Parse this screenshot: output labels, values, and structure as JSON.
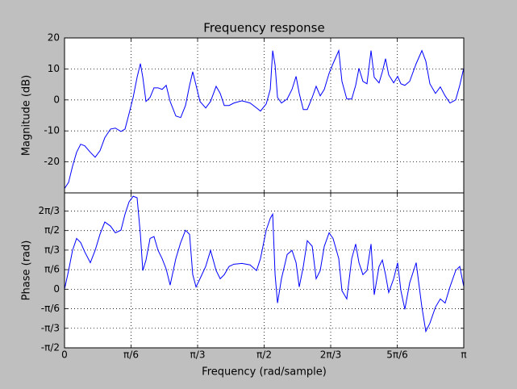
{
  "chart_data": [
    {
      "type": "line",
      "title": "Frequency response",
      "y_label": "Magnitude (dB)",
      "color": "#0000ff",
      "grid": true,
      "x": [
        0,
        0.032,
        0.063,
        0.095,
        0.127,
        0.159,
        0.203,
        0.241,
        0.279,
        0.317,
        0.362,
        0.4,
        0.444,
        0.476,
        0.508,
        0.54,
        0.571,
        0.597,
        0.616,
        0.641,
        0.673,
        0.704,
        0.736,
        0.768,
        0.8,
        0.831,
        0.876,
        0.914,
        0.952,
        0.984,
        1.009,
        1.035,
        1.066,
        1.111,
        1.149,
        1.193,
        1.225,
        1.257,
        1.295,
        1.333,
        1.396,
        1.46,
        1.511,
        1.542,
        1.587,
        1.619,
        1.638,
        1.657,
        1.676,
        1.707,
        1.752,
        1.79,
        1.822,
        1.847,
        1.879,
        1.91,
        1.949,
        1.98,
        2.012,
        2.044,
        2.082,
        2.113,
        2.158,
        2.183,
        2.221,
        2.26,
        2.291,
        2.317,
        2.348,
        2.38,
        2.412,
        2.437,
        2.475,
        2.501,
        2.526,
        2.551,
        2.59,
        2.621,
        2.647,
        2.678,
        2.716,
        2.767,
        2.812,
        2.843,
        2.875,
        2.919,
        2.957,
        2.995,
        3.033,
        3.078,
        3.11,
        3.142
      ],
      "values": [
        -28.6,
        -26.6,
        -21.4,
        -16.9,
        -14.3,
        -14.8,
        -16.9,
        -18.5,
        -16.4,
        -12.2,
        -9.4,
        -9.1,
        -10.2,
        -9.4,
        -4.4,
        0.8,
        7.3,
        11.7,
        7.3,
        -0.5,
        0.8,
        3.9,
        3.9,
        3.4,
        4.7,
        -0.5,
        -5.2,
        -5.7,
        -1.8,
        4.7,
        9.1,
        4.7,
        -0.5,
        -2.6,
        -0.5,
        4.4,
        2.1,
        -1.8,
        -1.8,
        -1.0,
        -0.3,
        -1.0,
        -2.6,
        -3.6,
        -1.3,
        3.4,
        15.9,
        11.2,
        0.8,
        -1.0,
        0.3,
        3.4,
        7.6,
        2.1,
        -3.1,
        -3.1,
        0.8,
        4.4,
        1.3,
        3.4,
        8.6,
        11.7,
        15.9,
        6.0,
        0.3,
        0.3,
        4.7,
        10.2,
        6.0,
        5.2,
        15.9,
        7.3,
        5.5,
        9.1,
        13.3,
        8.1,
        5.5,
        7.6,
        5.2,
        4.7,
        6.0,
        11.7,
        15.9,
        12.5,
        5.2,
        2.1,
        4.2,
        1.3,
        -1.0,
        0.0,
        4.7,
        10.4
      ],
      "xlim": [
        0,
        3.14159
      ],
      "xticks": [
        0,
        0.5236,
        1.0472,
        1.5708,
        2.0944,
        2.618,
        3.14159
      ],
      "ylim": [
        -30,
        20
      ],
      "yticks": [
        -20,
        -10,
        0,
        10,
        20
      ]
    },
    {
      "type": "line",
      "x_label": "Frequency (rad/sample)",
      "y_label": "Phase (rad)",
      "color": "#0000ff",
      "grid": true,
      "x": [
        0,
        0.032,
        0.063,
        0.095,
        0.127,
        0.159,
        0.203,
        0.241,
        0.279,
        0.317,
        0.362,
        0.4,
        0.444,
        0.476,
        0.508,
        0.54,
        0.571,
        0.597,
        0.616,
        0.641,
        0.673,
        0.704,
        0.736,
        0.768,
        0.8,
        0.831,
        0.876,
        0.914,
        0.952,
        0.984,
        1.009,
        1.035,
        1.066,
        1.111,
        1.149,
        1.193,
        1.225,
        1.257,
        1.295,
        1.333,
        1.396,
        1.46,
        1.511,
        1.542,
        1.587,
        1.619,
        1.638,
        1.657,
        1.676,
        1.707,
        1.752,
        1.79,
        1.822,
        1.847,
        1.879,
        1.91,
        1.949,
        1.98,
        2.012,
        2.044,
        2.082,
        2.113,
        2.158,
        2.183,
        2.221,
        2.26,
        2.291,
        2.317,
        2.348,
        2.38,
        2.412,
        2.437,
        2.475,
        2.501,
        2.526,
        2.551,
        2.59,
        2.621,
        2.647,
        2.678,
        2.716,
        2.767,
        2.812,
        2.843,
        2.875,
        2.919,
        2.957,
        2.995,
        3.033,
        3.078,
        3.11,
        3.142
      ],
      "values": [
        0,
        0.5,
        1.04,
        1.36,
        1.25,
        1.0,
        0.71,
        1.04,
        1.47,
        1.8,
        1.69,
        1.51,
        1.58,
        2.01,
        2.34,
        2.49,
        2.45,
        1.47,
        0.5,
        0.78,
        1.36,
        1.41,
        1.04,
        0.82,
        0.54,
        0.11,
        0.82,
        1.25,
        1.58,
        1.47,
        0.39,
        0.06,
        0.28,
        0.61,
        1.04,
        0.5,
        0.28,
        0.39,
        0.61,
        0.67,
        0.69,
        0.65,
        0.5,
        0.82,
        1.58,
        1.9,
        2.01,
        0.39,
        -0.37,
        0.28,
        0.93,
        1.04,
        0.71,
        0.06,
        0.61,
        1.3,
        1.15,
        0.28,
        0.5,
        1.15,
        1.51,
        1.36,
        0.82,
        -0.04,
        -0.26,
        0.82,
        1.21,
        0.71,
        0.39,
        0.5,
        1.21,
        -0.15,
        0.61,
        0.78,
        0.39,
        -0.09,
        0.28,
        0.71,
        -0.04,
        -0.54,
        0.17,
        0.71,
        -0.48,
        -1.13,
        -0.91,
        -0.48,
        -0.26,
        -0.37,
        0.06,
        0.5,
        0.61,
        0.06
      ],
      "xlim": [
        0,
        3.14159
      ],
      "xticks": [
        0,
        {
          "value": 0.5236,
          "label": "π/6"
        },
        {
          "value": 1.0472,
          "label": "π/3"
        },
        {
          "value": 1.5708,
          "label": "π/2"
        },
        {
          "value": 2.0944,
          "label": "2π/3"
        },
        {
          "value": 2.618,
          "label": "5π/6"
        },
        {
          "value": 3.14159,
          "label": "π"
        }
      ],
      "ylim": [
        -1.5708,
        2.58
      ],
      "yticks": [
        {
          "value": -1.5708,
          "label": "-π/2"
        },
        {
          "value": -1.0472,
          "label": "-π/3"
        },
        {
          "value": -0.5236,
          "label": "-π/6"
        },
        0,
        {
          "value": 0.5236,
          "label": "π/6"
        },
        {
          "value": 1.0472,
          "label": "π/3"
        },
        {
          "value": 1.5708,
          "label": "π/2"
        },
        {
          "value": 2.0944,
          "label": "2π/3"
        }
      ]
    }
  ]
}
